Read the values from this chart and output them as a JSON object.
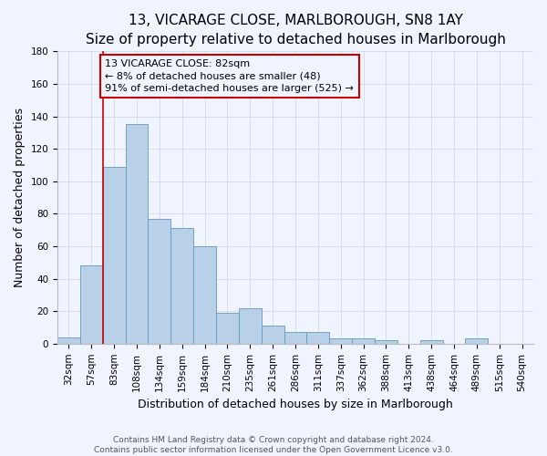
{
  "title": "13, VICARAGE CLOSE, MARLBOROUGH, SN8 1AY",
  "subtitle": "Size of property relative to detached houses in Marlborough",
  "xlabel": "Distribution of detached houses by size in Marlborough",
  "ylabel": "Number of detached properties",
  "bar_labels": [
    "32sqm",
    "57sqm",
    "83sqm",
    "108sqm",
    "134sqm",
    "159sqm",
    "184sqm",
    "210sqm",
    "235sqm",
    "261sqm",
    "286sqm",
    "311sqm",
    "337sqm",
    "362sqm",
    "388sqm",
    "413sqm",
    "438sqm",
    "464sqm",
    "489sqm",
    "515sqm",
    "540sqm"
  ],
  "bar_values": [
    4,
    48,
    109,
    135,
    77,
    71,
    60,
    19,
    22,
    11,
    7,
    7,
    3,
    3,
    2,
    0,
    2,
    0,
    3,
    0,
    0
  ],
  "bar_color": "#b8d0e8",
  "bar_edge_color": "#6699bb",
  "ylim": [
    0,
    180
  ],
  "yticks": [
    0,
    20,
    40,
    60,
    80,
    100,
    120,
    140,
    160,
    180
  ],
  "property_label": "13 VICARAGE CLOSE: 82sqm",
  "pct_smaller": "8%",
  "n_smaller": 48,
  "pct_larger_semi": "91%",
  "n_larger_semi": 525,
  "annotation_box_color": "#cc0000",
  "vline_color": "#cc0000",
  "vline_x": 1.5,
  "footer_line1": "Contains HM Land Registry data © Crown copyright and database right 2024.",
  "footer_line2": "Contains public sector information licensed under the Open Government Licence v3.0.",
  "background_color": "#f0f4ff",
  "grid_color": "#d0d8e8",
  "title_fontsize": 11,
  "subtitle_fontsize": 9.5,
  "axis_label_fontsize": 9,
  "tick_fontsize": 7.5,
  "annotation_fontsize": 8,
  "footer_fontsize": 6.5
}
